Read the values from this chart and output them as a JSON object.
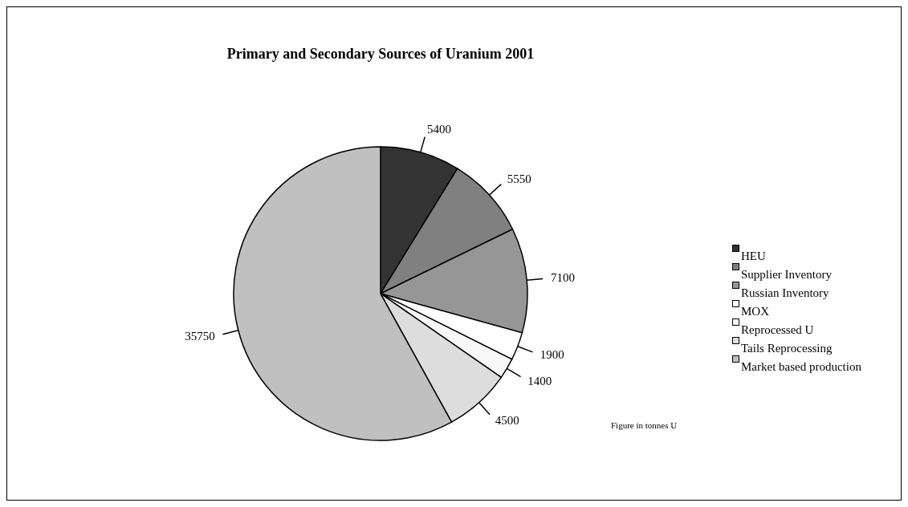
{
  "chart_data": {
    "type": "pie",
    "title": "Primary and Secondary Sources of Uranium 2001",
    "categories": [
      "HEU",
      "Supplier Inventory",
      "Russian Inventory",
      "MOX",
      "Reprocessed U",
      "Tails Reprocessing",
      "Market based production"
    ],
    "values": [
      5400,
      5550,
      7100,
      1900,
      1400,
      4500,
      35750
    ],
    "colors": [
      "#333333",
      "#808080",
      "#969696",
      "#ffffff",
      "#f8f8f8",
      "#dddddd",
      "#c0c0c0"
    ],
    "data_labels": true,
    "legend": "right",
    "annotations": [
      "Figure in tonnes U"
    ]
  }
}
